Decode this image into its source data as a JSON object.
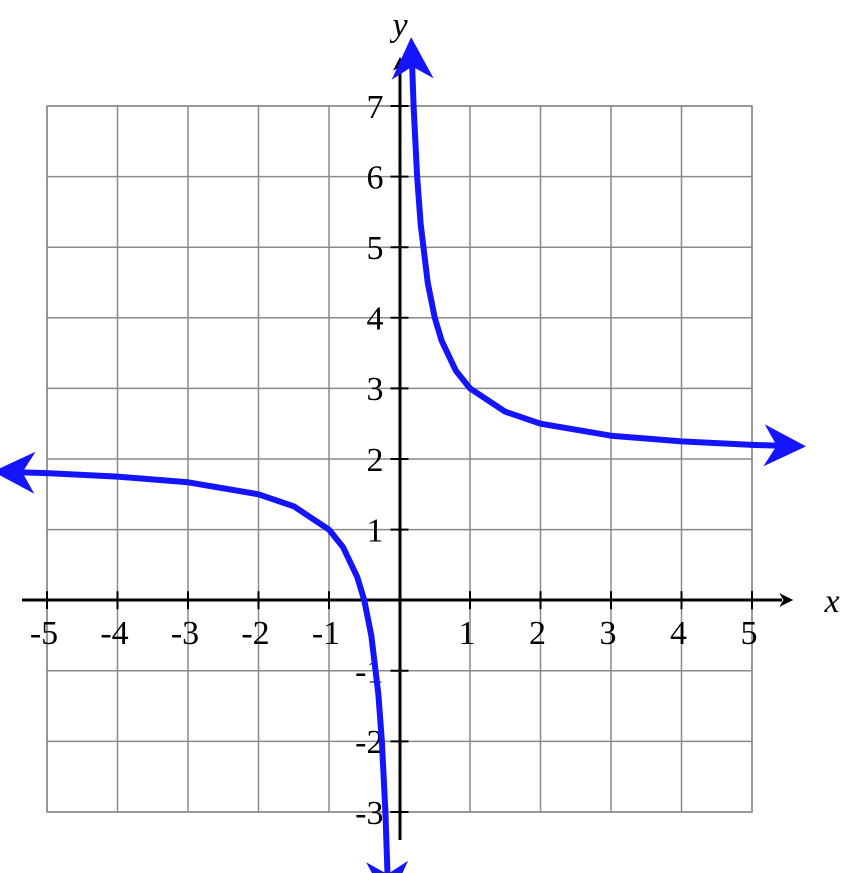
{
  "chart_data": {
    "type": "line",
    "x_label": "x",
    "y_label": "y",
    "xlim": [
      -5,
      5
    ],
    "ylim": [
      -3,
      7
    ],
    "xticks": [
      -5,
      -4,
      -3,
      -2,
      -1,
      1,
      2,
      3,
      4,
      5
    ],
    "yticks": [
      -3,
      -2,
      -1,
      1,
      2,
      3,
      4,
      5,
      6,
      7
    ],
    "grid": true,
    "series": [
      {
        "color": "#1414ff",
        "x": [
          -5.35,
          -5,
          -4,
          -3,
          -2,
          -1.5,
          -1,
          -0.8,
          -0.6,
          -0.5,
          -0.4,
          -0.3,
          -0.25,
          -0.2,
          -0.17
        ],
        "values": [
          1.81,
          1.8,
          1.75,
          1.67,
          1.5,
          1.33,
          1,
          0.75,
          0.33,
          0,
          -0.5,
          -1.33,
          -2,
          -3,
          -3.88
        ]
      },
      {
        "color": "#1414ff",
        "x": [
          0.18,
          0.2,
          0.25,
          0.3,
          0.4,
          0.5,
          0.6,
          0.8,
          1,
          1.5,
          2,
          3,
          4,
          5,
          5.35
        ],
        "values": [
          7.56,
          7,
          6,
          5.33,
          4.5,
          4,
          3.67,
          3.25,
          3,
          2.67,
          2.5,
          2.33,
          2.25,
          2.2,
          2.19
        ]
      }
    ]
  }
}
